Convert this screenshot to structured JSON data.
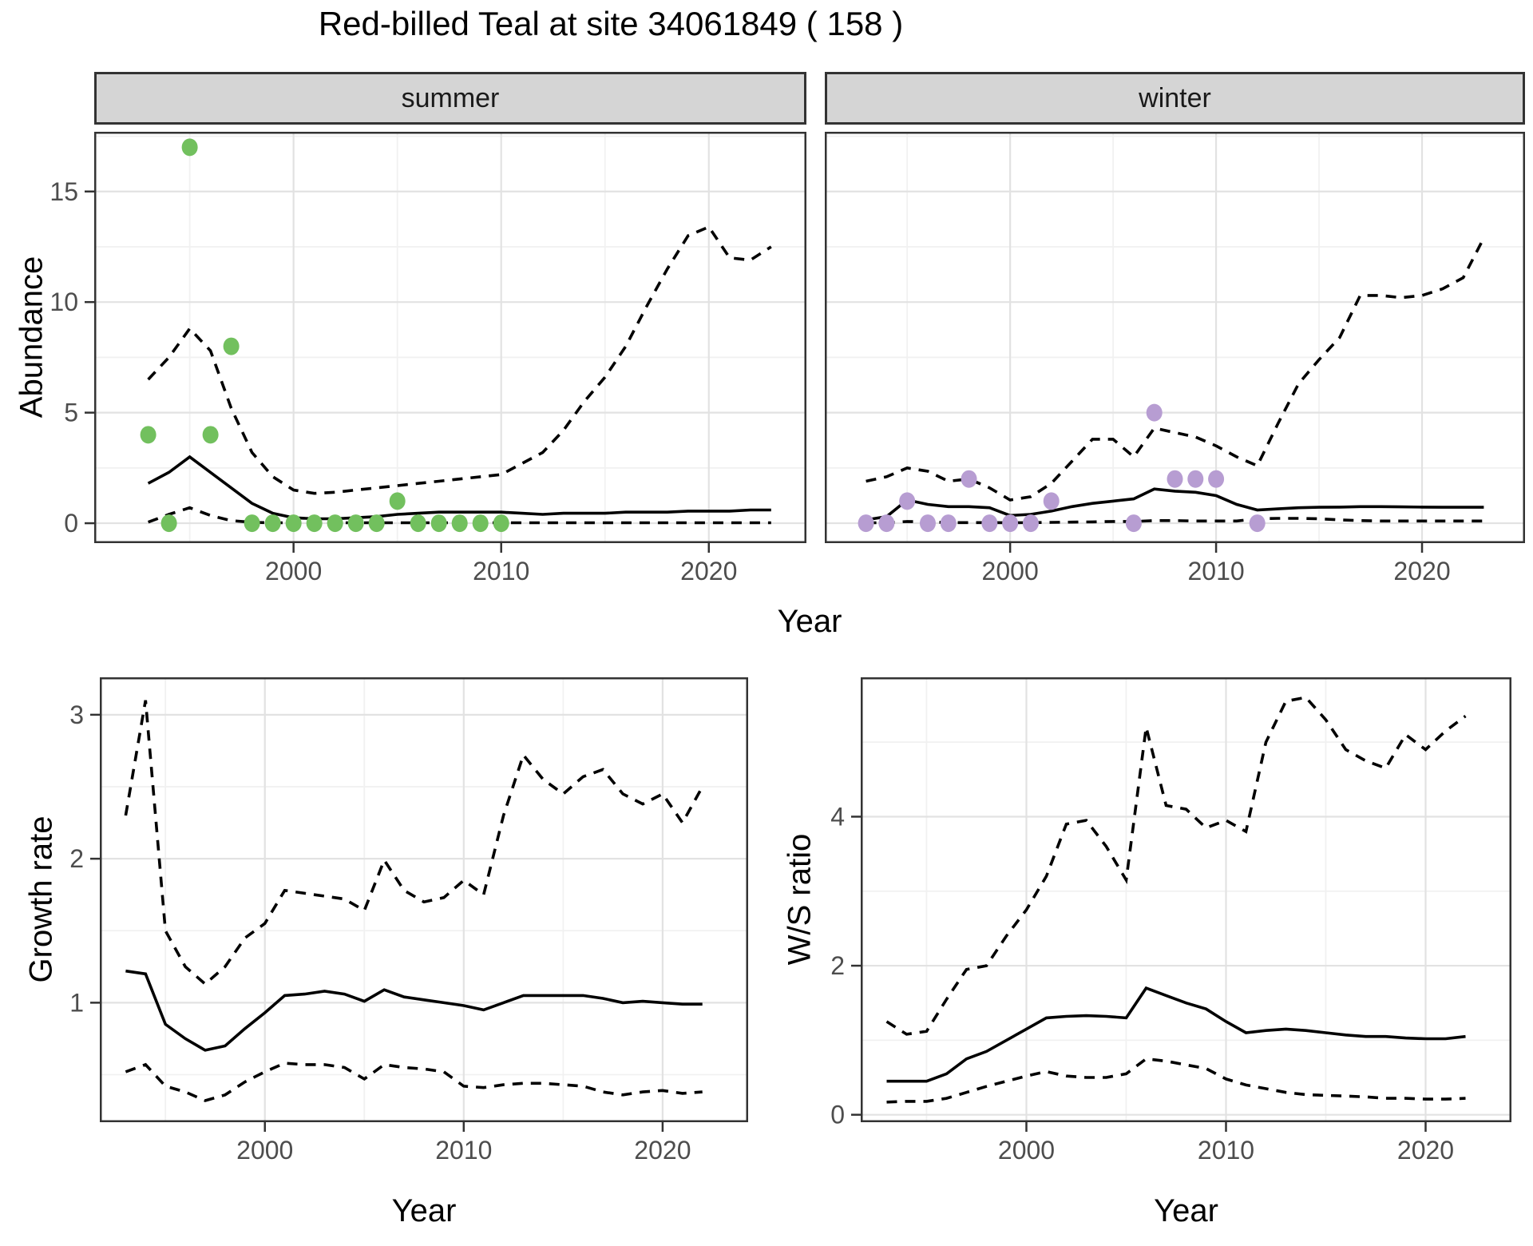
{
  "title": "Red-billed Teal at site 34061849 ( 158 )",
  "axis_labels": {
    "x": "Year",
    "y_abundance": "Abundance",
    "y_growth": "Growth rate",
    "y_ws": "W/S ratio"
  },
  "facets": {
    "summer": "summer",
    "winter": "winter"
  },
  "colors": {
    "summer_point": "#72c05e",
    "winter_point": "#b79dd2",
    "line": "#000000",
    "grid_major": "#e2e2e2",
    "grid_minor": "#f1f1f1",
    "strip_bg": "#d5d5d5",
    "panel_border": "#333333",
    "tick_text": "#4d4d4d"
  },
  "chart_data": [
    {
      "id": "summer",
      "type": "line+scatter",
      "facet_label": "summer",
      "xlabel": "Year",
      "ylabel": "Abundance",
      "xlim": [
        1990.4,
        2024.7
      ],
      "ylim": [
        -0.9,
        17.7
      ],
      "x_major": [
        2000,
        2010,
        2020
      ],
      "x_minor": [
        1995,
        2005,
        2015
      ],
      "y_major": [
        0,
        5,
        10,
        15
      ],
      "y_minor": [
        2.5,
        7.5,
        12.5,
        17.5
      ],
      "show_y_labels": true,
      "grid": true,
      "legend": "none",
      "years": [
        1993,
        1994,
        1995,
        1996,
        1997,
        1998,
        1999,
        2000,
        2001,
        2002,
        2003,
        2004,
        2005,
        2006,
        2007,
        2008,
        2009,
        2010,
        2011,
        2012,
        2013,
        2014,
        2015,
        2016,
        2017,
        2018,
        2019,
        2020,
        2021,
        2022,
        2023
      ],
      "series": [
        {
          "name": "median",
          "style": "solid",
          "values": [
            1.8,
            2.3,
            3.0,
            2.3,
            1.6,
            0.9,
            0.45,
            0.25,
            0.2,
            0.2,
            0.25,
            0.3,
            0.4,
            0.45,
            0.5,
            0.5,
            0.5,
            0.5,
            0.45,
            0.4,
            0.45,
            0.45,
            0.45,
            0.5,
            0.5,
            0.5,
            0.55,
            0.55,
            0.55,
            0.6,
            0.6
          ]
        },
        {
          "name": "upper_ci",
          "style": "dashed",
          "values": [
            6.5,
            7.5,
            8.8,
            7.8,
            5.2,
            3.2,
            2.1,
            1.5,
            1.35,
            1.4,
            1.5,
            1.6,
            1.7,
            1.8,
            1.9,
            2.0,
            2.1,
            2.2,
            2.7,
            3.2,
            4.2,
            5.5,
            6.6,
            8.0,
            9.8,
            11.5,
            13.0,
            13.4,
            12.0,
            11.9,
            12.5
          ]
        },
        {
          "name": "lower_ci",
          "style": "dashed",
          "values": [
            0.05,
            0.4,
            0.7,
            0.35,
            0.12,
            0.04,
            0.02,
            0.02,
            0.02,
            0.02,
            0.02,
            0.02,
            0.02,
            0.02,
            0.02,
            0.02,
            0.02,
            0.02,
            0.02,
            0.02,
            0.02,
            0.02,
            0.02,
            0.02,
            0.02,
            0.02,
            0.02,
            0.02,
            0.02,
            0.02,
            0.02
          ]
        }
      ],
      "points": {
        "name": "observed_counts",
        "color": "#72c05e",
        "data": [
          [
            1993,
            4
          ],
          [
            1994,
            0
          ],
          [
            1995,
            17
          ],
          [
            1996,
            4
          ],
          [
            1997,
            8
          ],
          [
            1998,
            0
          ],
          [
            1999,
            0
          ],
          [
            2000,
            0
          ],
          [
            2001,
            0
          ],
          [
            2002,
            0
          ],
          [
            2003,
            0
          ],
          [
            2004,
            0
          ],
          [
            2005,
            1
          ],
          [
            2006,
            0
          ],
          [
            2007,
            0
          ],
          [
            2008,
            0
          ],
          [
            2009,
            0
          ],
          [
            2010,
            0
          ]
        ]
      }
    },
    {
      "id": "winter",
      "type": "line+scatter",
      "facet_label": "winter",
      "xlabel": "Year",
      "ylabel": "Abundance",
      "xlim": [
        1991.0,
        2025.0
      ],
      "ylim": [
        -0.9,
        17.7
      ],
      "x_major": [
        2000,
        2010,
        2020
      ],
      "x_minor": [
        1995,
        2005,
        2015
      ],
      "y_major": [
        0,
        5,
        10,
        15
      ],
      "y_minor": [
        2.5,
        7.5,
        12.5,
        17.5
      ],
      "show_y_labels": false,
      "grid": true,
      "legend": "none",
      "years": [
        1993,
        1994,
        1995,
        1996,
        1997,
        1998,
        1999,
        2000,
        2001,
        2002,
        2003,
        2004,
        2005,
        2006,
        2007,
        2008,
        2009,
        2010,
        2011,
        2012,
        2013,
        2014,
        2015,
        2016,
        2017,
        2018,
        2019,
        2020,
        2021,
        2022,
        2023
      ],
      "series": [
        {
          "name": "median",
          "style": "solid",
          "values": [
            0.15,
            0.3,
            1.05,
            0.85,
            0.75,
            0.75,
            0.7,
            0.35,
            0.4,
            0.55,
            0.75,
            0.9,
            1.0,
            1.1,
            1.55,
            1.45,
            1.4,
            1.25,
            0.85,
            0.6,
            0.65,
            0.7,
            0.72,
            0.73,
            0.75,
            0.75,
            0.74,
            0.73,
            0.72,
            0.72,
            0.72
          ]
        },
        {
          "name": "upper_ci",
          "style": "dashed",
          "values": [
            1.9,
            2.1,
            2.5,
            2.35,
            1.9,
            2.0,
            1.6,
            1.05,
            1.2,
            1.8,
            2.8,
            3.8,
            3.8,
            3.0,
            4.3,
            4.1,
            3.9,
            3.5,
            3.0,
            2.6,
            4.5,
            6.3,
            7.4,
            8.4,
            10.3,
            10.3,
            10.2,
            10.3,
            10.6,
            11.1,
            12.9
          ]
        },
        {
          "name": "lower_ci",
          "style": "dashed",
          "values": [
            0.02,
            0.02,
            0.08,
            0.06,
            0.03,
            0.03,
            0.03,
            0.02,
            0.03,
            0.04,
            0.05,
            0.06,
            0.08,
            0.08,
            0.12,
            0.12,
            0.1,
            0.1,
            0.1,
            0.2,
            0.22,
            0.22,
            0.2,
            0.15,
            0.12,
            0.1,
            0.1,
            0.1,
            0.1,
            0.1,
            0.1
          ]
        }
      ],
      "points": {
        "name": "observed_counts",
        "color": "#b79dd2",
        "data": [
          [
            1993,
            0
          ],
          [
            1994,
            0
          ],
          [
            1995,
            1
          ],
          [
            1996,
            0
          ],
          [
            1997,
            0
          ],
          [
            1998,
            2
          ],
          [
            1999,
            0
          ],
          [
            2000,
            0
          ],
          [
            2001,
            0
          ],
          [
            2002,
            1
          ],
          [
            2006,
            0
          ],
          [
            2007,
            5
          ],
          [
            2008,
            2
          ],
          [
            2009,
            2
          ],
          [
            2010,
            2
          ],
          [
            2012,
            0
          ]
        ]
      }
    },
    {
      "id": "growth",
      "type": "line",
      "facet_label": "",
      "xlabel": "Year",
      "ylabel": "Growth rate",
      "xlim": [
        1991.7,
        2024.3
      ],
      "ylim": [
        0.17,
        3.26
      ],
      "x_major": [
        2000,
        2010,
        2020
      ],
      "x_minor": [
        1995,
        2005,
        2015
      ],
      "y_major": [
        1,
        2,
        3
      ],
      "y_minor": [
        0.5,
        1.5,
        2.5
      ],
      "show_y_labels": true,
      "grid": true,
      "legend": "none",
      "years": [
        1993,
        1994,
        1995,
        1996,
        1997,
        1998,
        1999,
        2000,
        2001,
        2002,
        2003,
        2004,
        2005,
        2006,
        2007,
        2008,
        2009,
        2010,
        2011,
        2012,
        2013,
        2014,
        2015,
        2016,
        2017,
        2018,
        2019,
        2020,
        2021,
        2022
      ],
      "series": [
        {
          "name": "median",
          "style": "solid",
          "values": [
            1.22,
            1.2,
            0.85,
            0.75,
            0.67,
            0.7,
            0.82,
            0.93,
            1.05,
            1.06,
            1.08,
            1.06,
            1.01,
            1.09,
            1.04,
            1.02,
            1.0,
            0.98,
            0.95,
            1.0,
            1.05,
            1.05,
            1.05,
            1.05,
            1.03,
            1.0,
            1.01,
            1.0,
            0.99,
            0.99
          ]
        },
        {
          "name": "upper_ci",
          "style": "dashed",
          "values": [
            2.3,
            3.1,
            1.5,
            1.25,
            1.13,
            1.25,
            1.45,
            1.55,
            1.78,
            1.76,
            1.74,
            1.72,
            1.64,
            1.99,
            1.78,
            1.7,
            1.73,
            1.85,
            1.75,
            2.3,
            2.72,
            2.55,
            2.45,
            2.57,
            2.62,
            2.45,
            2.38,
            2.45,
            2.25,
            2.5
          ]
        },
        {
          "name": "lower_ci",
          "style": "dashed",
          "values": [
            0.52,
            0.57,
            0.42,
            0.38,
            0.32,
            0.36,
            0.45,
            0.52,
            0.58,
            0.57,
            0.57,
            0.55,
            0.47,
            0.57,
            0.55,
            0.54,
            0.52,
            0.42,
            0.41,
            0.43,
            0.44,
            0.44,
            0.43,
            0.42,
            0.38,
            0.36,
            0.38,
            0.39,
            0.37,
            0.38
          ]
        }
      ]
    },
    {
      "id": "ws",
      "type": "line",
      "facet_label": "",
      "xlabel": "Year",
      "ylabel": "W/S ratio",
      "xlim": [
        1991.7,
        2024.3
      ],
      "ylim": [
        -0.1,
        5.87
      ],
      "x_major": [
        2000,
        2010,
        2020
      ],
      "x_minor": [
        1995,
        2005,
        2015
      ],
      "y_major": [
        0,
        2,
        4
      ],
      "y_minor": [
        1,
        3,
        5
      ],
      "show_y_labels": true,
      "grid": true,
      "legend": "none",
      "years": [
        1993,
        1994,
        1995,
        1996,
        1997,
        1998,
        1999,
        2000,
        2001,
        2002,
        2003,
        2004,
        2005,
        2006,
        2007,
        2008,
        2009,
        2010,
        2011,
        2012,
        2013,
        2014,
        2015,
        2016,
        2017,
        2018,
        2019,
        2020,
        2021,
        2022
      ],
      "series": [
        {
          "name": "median",
          "style": "solid",
          "values": [
            0.45,
            0.45,
            0.45,
            0.55,
            0.75,
            0.85,
            1.0,
            1.15,
            1.3,
            1.32,
            1.33,
            1.32,
            1.3,
            1.7,
            1.6,
            1.5,
            1.42,
            1.25,
            1.1,
            1.13,
            1.15,
            1.13,
            1.1,
            1.07,
            1.05,
            1.05,
            1.03,
            1.02,
            1.02,
            1.05
          ]
        },
        {
          "name": "upper_ci",
          "style": "dashed",
          "values": [
            1.25,
            1.08,
            1.12,
            1.55,
            1.95,
            2.0,
            2.4,
            2.75,
            3.2,
            3.9,
            3.95,
            3.6,
            3.15,
            5.2,
            4.15,
            4.1,
            3.85,
            3.95,
            3.8,
            5.0,
            5.55,
            5.6,
            5.3,
            4.9,
            4.75,
            4.65,
            5.1,
            4.9,
            5.15,
            5.35
          ]
        },
        {
          "name": "lower_ci",
          "style": "dashed",
          "values": [
            0.17,
            0.18,
            0.18,
            0.22,
            0.3,
            0.38,
            0.45,
            0.52,
            0.58,
            0.52,
            0.5,
            0.5,
            0.55,
            0.75,
            0.72,
            0.67,
            0.62,
            0.48,
            0.4,
            0.35,
            0.3,
            0.27,
            0.26,
            0.25,
            0.24,
            0.22,
            0.22,
            0.21,
            0.21,
            0.22
          ]
        }
      ]
    }
  ]
}
